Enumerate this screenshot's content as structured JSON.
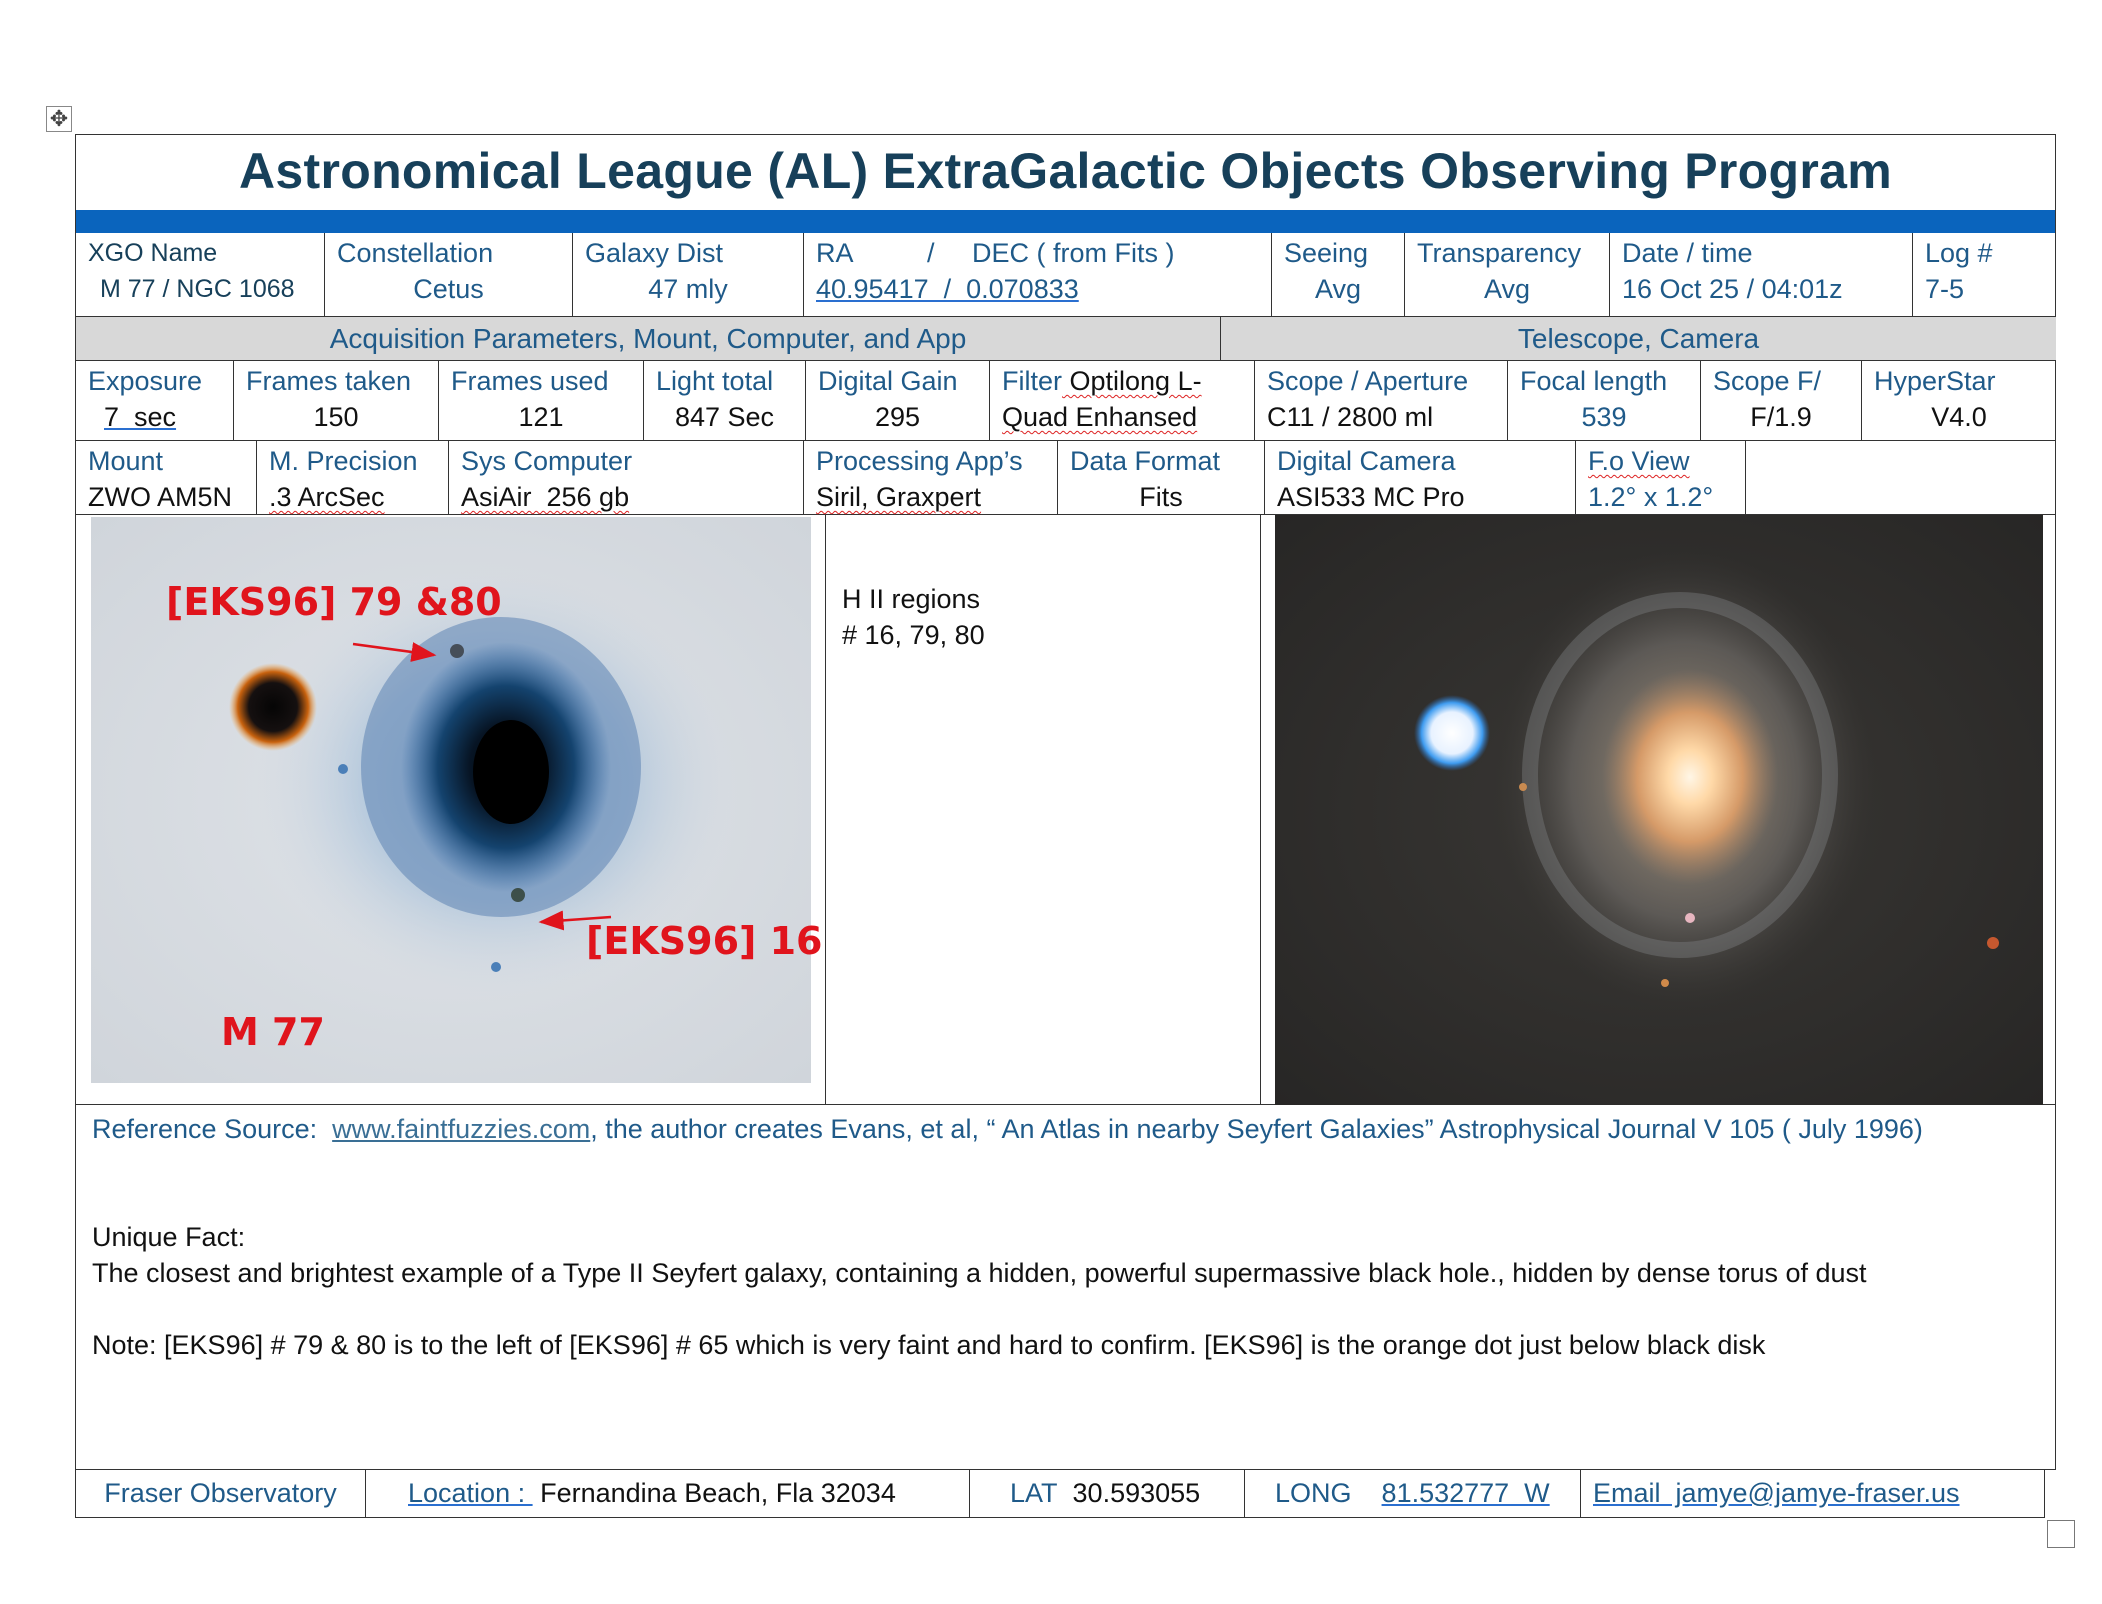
{
  "title": "Astronomical League (AL)   ExtraGalactic Objects Observing Program",
  "header": {
    "xgo_label": "XGO Name",
    "xgo_value": "M 77 / NGC 1068",
    "constellation_label": "Constellation",
    "constellation_value": "Cetus",
    "dist_label": "Galaxy Dist",
    "dist_value": "47 mly",
    "radec_label": "RA          /     DEC ( from Fits )",
    "radec_value": "40.95417  /  0.070833",
    "seeing_label": "Seeing",
    "seeing_value": "Avg",
    "transparency_label": "Transparency",
    "transparency_value": "Avg",
    "datetime_label": "Date / time",
    "datetime_value": "16 Oct 25 / 04:01z",
    "log_label": "Log #",
    "log_value": "7-5"
  },
  "sections": {
    "acq": "Acquisition Parameters, Mount, Computer, and App",
    "scope": "Telescope, Camera"
  },
  "params": {
    "exposure_label": "Exposure",
    "exposure_value": "7  sec",
    "frames_taken_label": "Frames taken",
    "frames_taken_value": "150",
    "frames_used_label": "Frames used",
    "frames_used_value": "121",
    "light_total_label": "Light total",
    "light_total_value": "847 Sec",
    "gain_label": "Digital Gain",
    "gain_value": "295",
    "filter_label": "Filter",
    "filter_value_1": " Optilong L-",
    "filter_value_2": "Quad Enhansed",
    "aperture_label": "Scope / Aperture",
    "aperture_value": "C11 / 2800 ml",
    "focal_label": "Focal length",
    "focal_value": "539",
    "ratio_label": "Scope F/",
    "ratio_value": "F/1.9",
    "hyperstar_label": "HyperStar",
    "hyperstar_value": "V4.0"
  },
  "gear": {
    "mount_label": "Mount",
    "mount_value": "ZWO AM5N",
    "precision_label": "M. Precision",
    "precision_value": ".3 ArcSec",
    "computer_label": "Sys Computer",
    "computer_value": "AsiAir  256 gb",
    "apps_label": "Processing App’s",
    "apps_value": "Siril, Graxpert",
    "format_label": "Data Format",
    "format_value": "Fits",
    "camera_label": "Digital Camera",
    "camera_value": "ASI533 MC Pro",
    "fov_label": "F.o View",
    "fov_value": "1.2° x 1.2°"
  },
  "images": {
    "label_top": "[EKS96] 79 &80",
    "label_bottom": "[EKS96] 16",
    "label_object": "M 77",
    "notes_line1": "H II regions",
    "notes_line2": "# 16, 79, 80"
  },
  "reference": {
    "label": "Reference Source:  ",
    "link": "www.faintfuzzies.com",
    "text": ", the author creates Evans, et al, “ An Atlas in nearby Seyfert Galaxies” Astrophysical Journal V 105 ( July 1996)"
  },
  "fact": {
    "label": "Unique Fact:",
    "text": "The closest and brightest example of a Type II Seyfert galaxy, containing a hidden, powerful supermassive black hole., hidden by  dense torus of dust",
    "note": "Note: [EKS96] # 79 & 80 is to the left of [EKS96] # 65 which is very faint and hard to confirm. [EKS96] is the orange dot just below black disk"
  },
  "footer": {
    "observatory": "Fraser Observatory",
    "location_label": "Location : ",
    "location_value": " Fernandina Beach, Fla 32034",
    "lat_label": "LAT",
    "lat_value": "30.593055",
    "long_label": "LONG",
    "long_value": "81.532777  W",
    "email": "Email  jamye@jamye-fraser.us"
  },
  "colors": {
    "title": "#17405a",
    "bar": "#0a64bd",
    "label": "#1f5a89",
    "annotation": "#e0141c",
    "header_grey": "#d8d8d8"
  }
}
